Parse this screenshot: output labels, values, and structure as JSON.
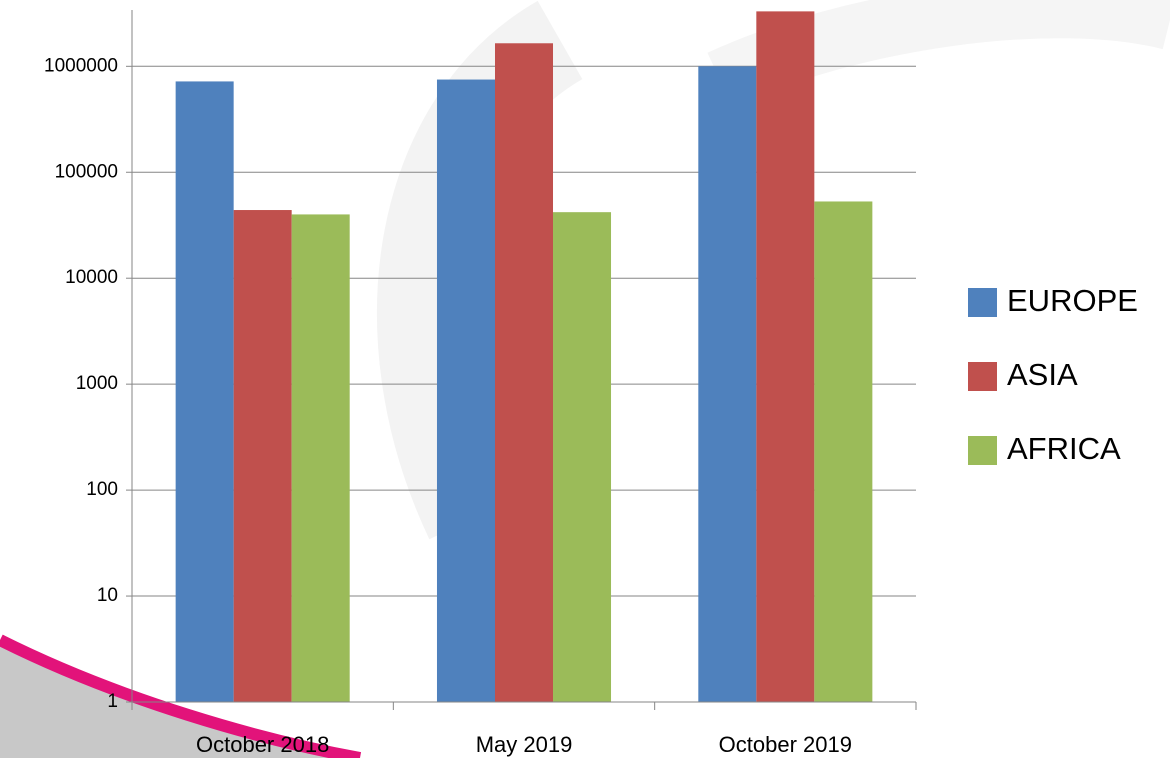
{
  "chart_data": {
    "type": "bar",
    "categories": [
      "October 2018",
      "May 2019",
      "October 2019"
    ],
    "series": [
      {
        "name": "EUROPE",
        "color": "#4f81bd",
        "values": [
          720000,
          750000,
          1000000
        ]
      },
      {
        "name": "ASIA",
        "color": "#c0504d",
        "values": [
          44000,
          1650000,
          3300000
        ]
      },
      {
        "name": "AFRICA",
        "color": "#9bbb59",
        "values": [
          40000,
          42000,
          53000
        ]
      }
    ],
    "ylim": [
      1,
      3400000
    ],
    "yticks": [
      1,
      10,
      100,
      1000,
      10000,
      100000,
      1000000
    ],
    "log_scale": true,
    "grid": true,
    "legend": "right"
  }
}
